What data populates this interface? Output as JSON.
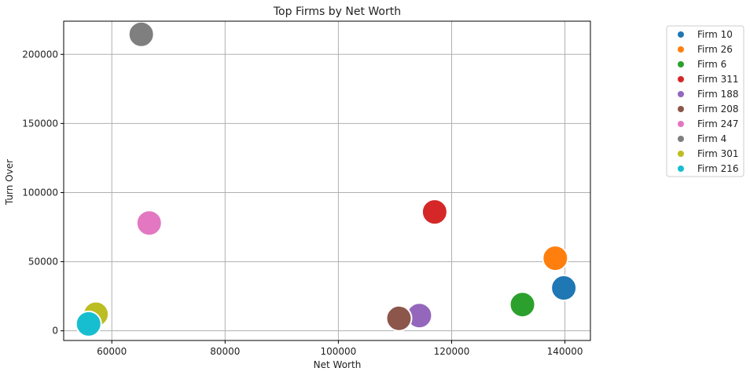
{
  "chart_data": {
    "type": "scatter",
    "title": "Top Firms by Net Worth",
    "xlabel": "Net Worth",
    "ylabel": "Turn Over",
    "xlim": [
      51500,
      144500
    ],
    "ylim": [
      -7000,
      224000
    ],
    "xticks": [
      60000,
      80000,
      100000,
      120000,
      140000
    ],
    "yticks": [
      0,
      50000,
      100000,
      150000,
      200000
    ],
    "grid": true,
    "legend_position": "outside-top-right",
    "series": [
      {
        "name": "Firm 10",
        "color": "#1f77b4",
        "x": 139800,
        "y": 31000
      },
      {
        "name": "Firm 26",
        "color": "#ff7f0e",
        "x": 138300,
        "y": 52500
      },
      {
        "name": "Firm 6",
        "color": "#2ca02c",
        "x": 132500,
        "y": 19000
      },
      {
        "name": "Firm 311",
        "color": "#d62728",
        "x": 117000,
        "y": 86000
      },
      {
        "name": "Firm 188",
        "color": "#9467bd",
        "x": 114300,
        "y": 11000
      },
      {
        "name": "Firm 208",
        "color": "#8c564b",
        "x": 110700,
        "y": 9000
      },
      {
        "name": "Firm 247",
        "color": "#e377c2",
        "x": 66600,
        "y": 78000
      },
      {
        "name": "Firm 4",
        "color": "#7f7f7f",
        "x": 65200,
        "y": 214500
      },
      {
        "name": "Firm 301",
        "color": "#bcbd22",
        "x": 57200,
        "y": 12000
      },
      {
        "name": "Firm 216",
        "color": "#17becf",
        "x": 55900,
        "y": 5000
      }
    ]
  }
}
